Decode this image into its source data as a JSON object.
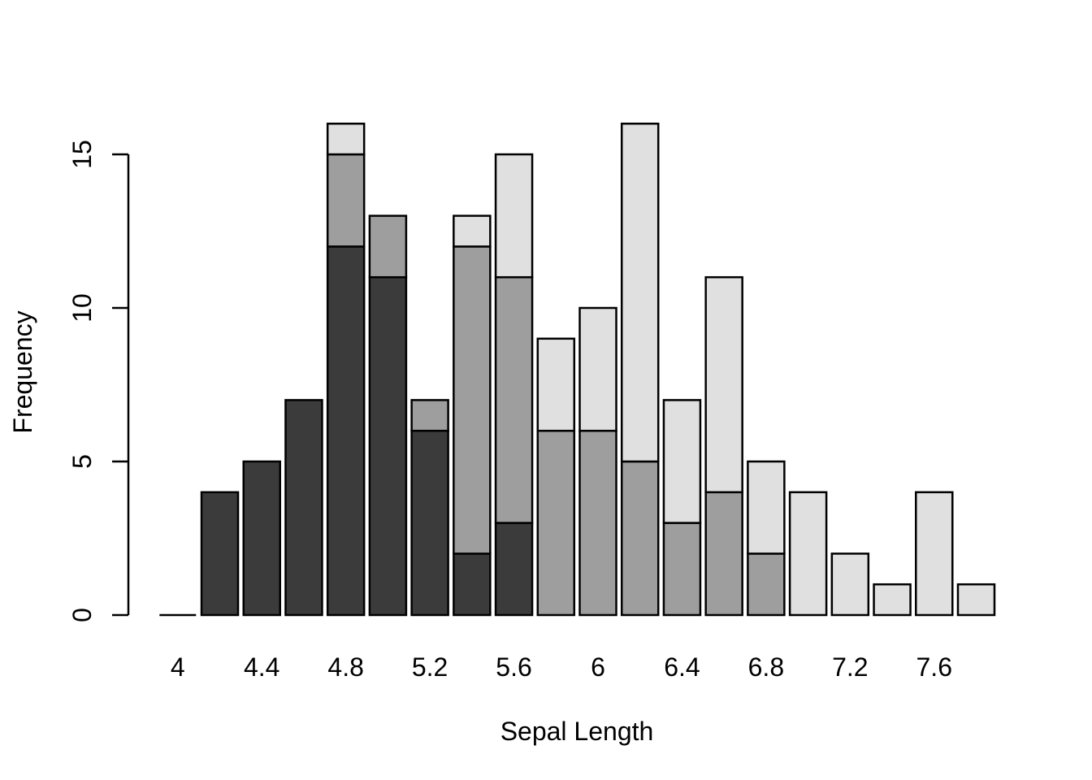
{
  "figure": {
    "background_color": "#FFFFFF",
    "text_color": "#000000"
  },
  "chart_data": {
    "type": "bar",
    "subtype": "stacked-histogram",
    "title": "",
    "xlabel": "Sepal Length",
    "ylabel": "Frequency",
    "bin_width": 0.2,
    "bin_starts": [
      4.0,
      4.2,
      4.4,
      4.6,
      4.8,
      5.0,
      5.2,
      5.4,
      5.6,
      5.8,
      6.0,
      6.2,
      6.4,
      6.6,
      6.8,
      7.0,
      7.2,
      7.4,
      7.6,
      7.8
    ],
    "series": [
      {
        "name": "dark-gray-bottom",
        "color": "#3B3B3B",
        "values": [
          0,
          4,
          5,
          7,
          12,
          11,
          6,
          2,
          3,
          0,
          0,
          0,
          0,
          0,
          0,
          0,
          0,
          0,
          0,
          0
        ]
      },
      {
        "name": "medium-gray-middle",
        "color": "#9E9E9E",
        "values": [
          0,
          0,
          0,
          0,
          3,
          2,
          1,
          10,
          8,
          6,
          6,
          5,
          3,
          4,
          2,
          0,
          0,
          0,
          0,
          0
        ]
      },
      {
        "name": "light-gray-top",
        "color": "#E0E0E0",
        "values": [
          0,
          0,
          0,
          0,
          1,
          0,
          0,
          1,
          4,
          3,
          4,
          11,
          4,
          7,
          3,
          4,
          2,
          1,
          4,
          1
        ]
      }
    ],
    "totals": [
      0,
      4,
      5,
      7,
      16,
      13,
      7,
      13,
      15,
      9,
      10,
      16,
      7,
      11,
      5,
      4,
      2,
      1,
      4,
      1
    ],
    "x_tick_labels": [
      "4",
      "4.4",
      "4.8",
      "5.2",
      "5.6",
      "6",
      "6.4",
      "6.8",
      "7.2",
      "7.6"
    ],
    "x_tick_bin_indices": [
      0,
      2,
      4,
      6,
      8,
      10,
      12,
      14,
      16,
      18
    ],
    "y_tick_labels": [
      "0",
      "5",
      "10",
      "15"
    ],
    "y_tick_values": [
      0,
      5,
      10,
      15
    ],
    "ylim": [
      0,
      16
    ],
    "grid": false,
    "legend": "none",
    "bar_border_color": "#000000",
    "axis_color": "#000000"
  }
}
